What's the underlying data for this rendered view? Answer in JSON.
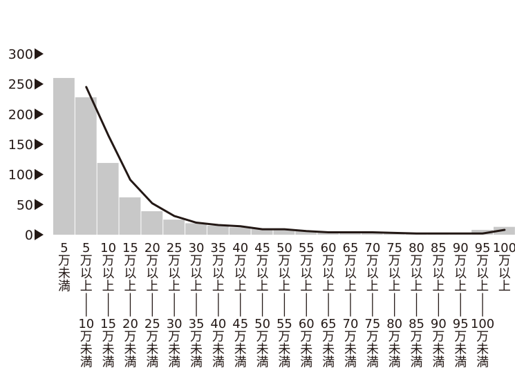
{
  "chart_data": {
    "type": "bar",
    "title": "",
    "xlabel": "",
    "ylabel": "",
    "ylim": [
      0,
      300
    ],
    "yticks": [
      0,
      50,
      100,
      150,
      200,
      250,
      300
    ],
    "grid": false,
    "legend": "none",
    "categories": [
      "5万未満",
      "5万以上―10万未満",
      "10万以上―15万未満",
      "15万以上―20万未満",
      "20万以上―25万未満",
      "25万以上―30万未満",
      "30万以上―35万未満",
      "35万以上―40万未満",
      "40万以上―45万未満",
      "45万以上―50万未満",
      "50万以上―55万未満",
      "55万以上―60万未満",
      "60万以上―65万未満",
      "65万以上―70万未満",
      "70万以上―75万未満",
      "75万以上―80万未満",
      "80万以上―85万未満",
      "85万以上―90万未満",
      "90万以上―95万未満",
      "95万以上―100万未満",
      "100万以上"
    ],
    "tick_labels": [
      {
        "top": "5",
        "mid": "",
        "bottom": "万未満"
      },
      {
        "top": "5",
        "mid": "万以上",
        "bottom": "10万未満"
      },
      {
        "top": "10",
        "mid": "万以上",
        "bottom": "15万未満"
      },
      {
        "top": "15",
        "mid": "万以上",
        "bottom": "20万未満"
      },
      {
        "top": "20",
        "mid": "万以上",
        "bottom": "25万未満"
      },
      {
        "top": "25",
        "mid": "万以上",
        "bottom": "30万未満"
      },
      {
        "top": "30",
        "mid": "万以上",
        "bottom": "35万未満"
      },
      {
        "top": "35",
        "mid": "万以上",
        "bottom": "40万未満"
      },
      {
        "top": "40",
        "mid": "万以上",
        "bottom": "45万未満"
      },
      {
        "top": "45",
        "mid": "万以上",
        "bottom": "50万未満"
      },
      {
        "top": "50",
        "mid": "万以上",
        "bottom": "55万未満"
      },
      {
        "top": "55",
        "mid": "万以上",
        "bottom": "60万未満"
      },
      {
        "top": "60",
        "mid": "万以上",
        "bottom": "65万未満"
      },
      {
        "top": "65",
        "mid": "万以上",
        "bottom": "70万未満"
      },
      {
        "top": "70",
        "mid": "万以上",
        "bottom": "75万未満"
      },
      {
        "top": "75",
        "mid": "万以上",
        "bottom": "80万未満"
      },
      {
        "top": "80",
        "mid": "万以上",
        "bottom": "85万未満"
      },
      {
        "top": "85",
        "mid": "万以上",
        "bottom": "90万未満"
      },
      {
        "top": "90",
        "mid": "万以上",
        "bottom": "95万未満"
      },
      {
        "top": "95",
        "mid": "万以上",
        "bottom": "100万未満"
      },
      {
        "top": "100",
        "mid": "万以上",
        "bottom": ""
      }
    ],
    "series": [
      {
        "type": "bar",
        "values": [
          260,
          228,
          119,
          62,
          39,
          25,
          19,
          15,
          12,
          10,
          8,
          6,
          4,
          3,
          3,
          2,
          2,
          1,
          1,
          8,
          13
        ]
      },
      {
        "type": "line",
        "values": [
          null,
          245,
          165,
          91,
          52,
          31,
          20,
          16,
          14,
          9,
          9,
          6,
          4,
          4,
          4,
          3,
          2,
          2,
          2,
          2,
          8
        ]
      }
    ],
    "colors": {
      "bar": "#c8c8c8",
      "line": "#231815",
      "text": "#231815",
      "axis_marker": "#231815"
    }
  }
}
